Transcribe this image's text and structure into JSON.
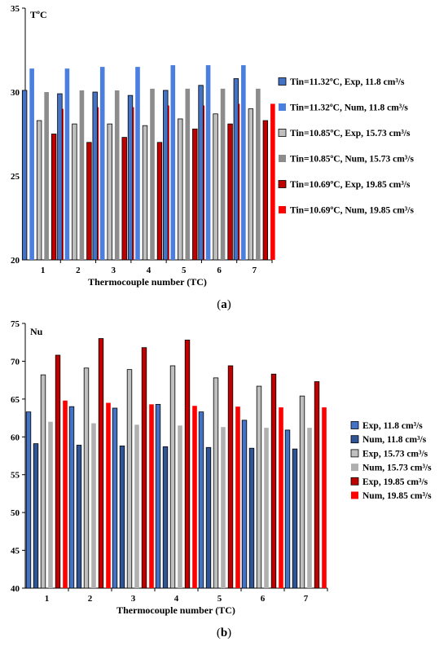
{
  "chart_data": [
    {
      "type": "bar",
      "ylabel": "TºC",
      "xlabel": "Thermocouple number (TC)",
      "caption_prefix": "(",
      "caption_letter": "a",
      "caption_suffix": ")",
      "categories": [
        "1",
        "2",
        "3",
        "4",
        "5",
        "6",
        "7"
      ],
      "ylim": [
        20,
        35
      ],
      "yticks": [
        20,
        25,
        30,
        35
      ],
      "grid": false,
      "legend_position": "right",
      "series": [
        {
          "name": "Tin=11.32ºC, Exp, 11.8 cm³/s",
          "color": "#4472c4",
          "edge": true,
          "values": [
            30.1,
            29.9,
            30.0,
            29.8,
            30.1,
            30.4,
            30.8
          ]
        },
        {
          "name": "Tin=11.32ºC, Num, 11.8 cm³/s",
          "color": "#4a7fe0",
          "edge": false,
          "values": [
            31.4,
            31.4,
            31.5,
            31.5,
            31.6,
            31.6,
            31.6
          ]
        },
        {
          "name": "Tin=10.85ºC, Exp, 15.73 cm³/s",
          "color": "#bfbfbf",
          "edge": true,
          "values": [
            28.3,
            28.1,
            28.1,
            28.0,
            28.4,
            28.7,
            29.0
          ]
        },
        {
          "name": "Tin=10.85ºC, Num, 15.73 cm³/s",
          "color": "#8c8c8c",
          "edge": false,
          "values": [
            30.0,
            30.1,
            30.1,
            30.2,
            30.2,
            30.2,
            30.2
          ]
        },
        {
          "name": "Tin=10.69ºC, Exp, 19.85 cm³/s",
          "color": "#c00000",
          "edge": true,
          "values": [
            27.5,
            27.0,
            27.3,
            27.0,
            27.8,
            28.1,
            28.3
          ]
        },
        {
          "name": "Tin=10.69ºC, Num, 19.85 cm³/s",
          "color": "#ff0000",
          "edge": false,
          "values": [
            29.0,
            29.1,
            29.1,
            29.2,
            29.2,
            29.3,
            29.3
          ]
        }
      ]
    },
    {
      "type": "bar",
      "ylabel": "Nu",
      "xlabel": "Thermocouple number (TC)",
      "caption_prefix": "(",
      "caption_letter": "b",
      "caption_suffix": ")",
      "categories": [
        "1",
        "2",
        "3",
        "4",
        "5",
        "6",
        "7"
      ],
      "ylim": [
        40,
        75
      ],
      "yticks": [
        40,
        45,
        50,
        55,
        60,
        65,
        70,
        75
      ],
      "grid": false,
      "legend_position": "right",
      "series": [
        {
          "name": "Exp, 11.8 cm³/s",
          "color": "#4472c4",
          "edge": true,
          "values": [
            63.3,
            64.0,
            63.8,
            64.3,
            63.3,
            62.2,
            60.9
          ]
        },
        {
          "name": "Num, 11.8 cm³/s",
          "color": "#2f5597",
          "edge": true,
          "values": [
            59.1,
            58.9,
            58.8,
            58.7,
            58.6,
            58.5,
            58.4
          ]
        },
        {
          "name": "Exp, 15.73 cm³/s",
          "color": "#bfbfbf",
          "edge": true,
          "values": [
            68.2,
            69.1,
            68.9,
            69.4,
            67.8,
            66.7,
            65.4
          ]
        },
        {
          "name": "Num, 15.73 cm³/s",
          "color": "#b0b0b0",
          "edge": false,
          "values": [
            62.0,
            61.8,
            61.6,
            61.5,
            61.3,
            61.2,
            61.2
          ]
        },
        {
          "name": "Exp, 19.85 cm³/s",
          "color": "#c00000",
          "edge": true,
          "values": [
            70.8,
            73.0,
            71.8,
            72.8,
            69.4,
            68.3,
            67.3
          ]
        },
        {
          "name": "Num, 19.85 cm³/s",
          "color": "#ff0000",
          "edge": false,
          "values": [
            64.8,
            64.5,
            64.3,
            64.1,
            64.0,
            63.9,
            63.9
          ]
        }
      ]
    }
  ]
}
